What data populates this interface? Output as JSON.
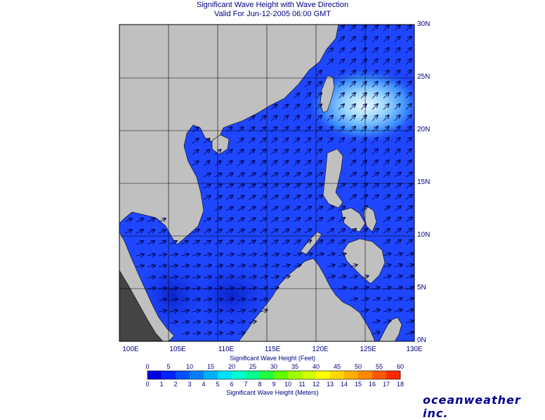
{
  "title": "Significant Wave Height with Wave Direction",
  "subtitle": "Valid For Jun-12-2005 06:00 GMT",
  "map": {
    "lat_labels": [
      "30N",
      "25N",
      "20N",
      "15N",
      "10N",
      "5N",
      "0N"
    ],
    "lon_labels": [
      "100E",
      "105E",
      "110E",
      "115E",
      "120E",
      "125E",
      "130E"
    ],
    "land_color": "#c0c0c0",
    "sea_color": "#1e46ff",
    "arrow_color": "#000040"
  },
  "colorbar": {
    "feet_title": "Significant Wave Height (Feet)",
    "feet_ticks": [
      "0",
      "5",
      "10",
      "15",
      "20",
      "25",
      "30",
      "35",
      "40",
      "45",
      "50",
      "55",
      "60"
    ],
    "meter_ticks": [
      "0",
      "1",
      "2",
      "3",
      "4",
      "5",
      "6",
      "7",
      "8",
      "9",
      "10",
      "11",
      "12",
      "13",
      "14",
      "15",
      "16",
      "17",
      "18"
    ],
    "meters_title": "Significant Wave Height (Meters)",
    "colors": [
      "#0000e0",
      "#0024ff",
      "#0050ff",
      "#0080ff",
      "#00b0ff",
      "#00e0ff",
      "#00ffd0",
      "#00ff90",
      "#20ff40",
      "#60ff00",
      "#a0ff00",
      "#d0ff00",
      "#ffff00",
      "#ffd800",
      "#ffb000",
      "#ff8800",
      "#ff5a00",
      "#ff2800"
    ]
  },
  "brand": "oceanweather inc."
}
